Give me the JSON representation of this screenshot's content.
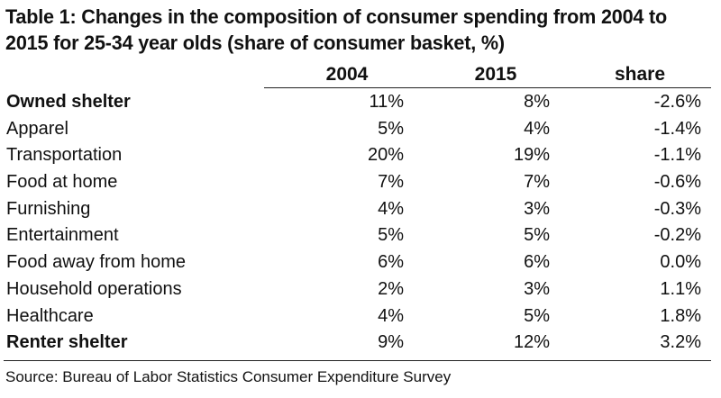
{
  "title": "Table 1: Changes in the composition of consumer spending from 2004 to 2015 for 25-34 year olds (share of consumer basket, %)",
  "columns": [
    "2004",
    "2015",
    "share"
  ],
  "rows": [
    {
      "category": "Owned shelter",
      "y2004": "11%",
      "y2015": "8%",
      "share": "-2.6%",
      "bold": true
    },
    {
      "category": "Apparel",
      "y2004": "5%",
      "y2015": "4%",
      "share": "-1.4%",
      "bold": false
    },
    {
      "category": "Transportation",
      "y2004": "20%",
      "y2015": "19%",
      "share": "-1.1%",
      "bold": false
    },
    {
      "category": "Food at home",
      "y2004": "7%",
      "y2015": "7%",
      "share": "-0.6%",
      "bold": false
    },
    {
      "category": "Furnishing",
      "y2004": "4%",
      "y2015": "3%",
      "share": "-0.3%",
      "bold": false
    },
    {
      "category": "Entertainment",
      "y2004": "5%",
      "y2015": "5%",
      "share": "-0.2%",
      "bold": false
    },
    {
      "category": "Food away from home",
      "y2004": "6%",
      "y2015": "6%",
      "share": "0.0%",
      "bold": false
    },
    {
      "category": "Household operations",
      "y2004": "2%",
      "y2015": "3%",
      "share": "1.1%",
      "bold": false
    },
    {
      "category": "Healthcare",
      "y2004": "4%",
      "y2015": "5%",
      "share": "1.8%",
      "bold": false
    },
    {
      "category": "Renter shelter",
      "y2004": "9%",
      "y2015": "12%",
      "share": "3.2%",
      "bold": true
    }
  ],
  "source": "Source: Bureau of Labor Statistics Consumer Expenditure Survey"
}
